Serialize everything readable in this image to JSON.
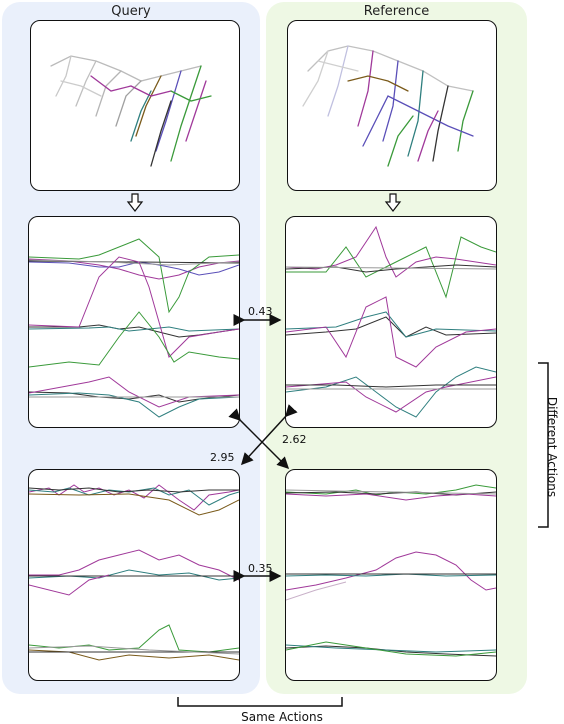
{
  "columns": {
    "query_title": "Query",
    "reference_title": "Reference"
  },
  "distances": {
    "top_pair": "0.43",
    "bottom_pair": "0.35",
    "cross_query_to_ref": "2.95",
    "cross_ref_to_query": "2.62"
  },
  "brackets": {
    "bottom_label": "Same Actions",
    "side_label": "Different Actions"
  },
  "colors": {
    "query_bg": "#eaf0fb",
    "reference_bg": "#eef8e4",
    "series": [
      "#3a9a3a",
      "#a0399a",
      "#2f7f7f",
      "#7a5a1a",
      "#333333",
      "#5a4fb8"
    ]
  }
}
